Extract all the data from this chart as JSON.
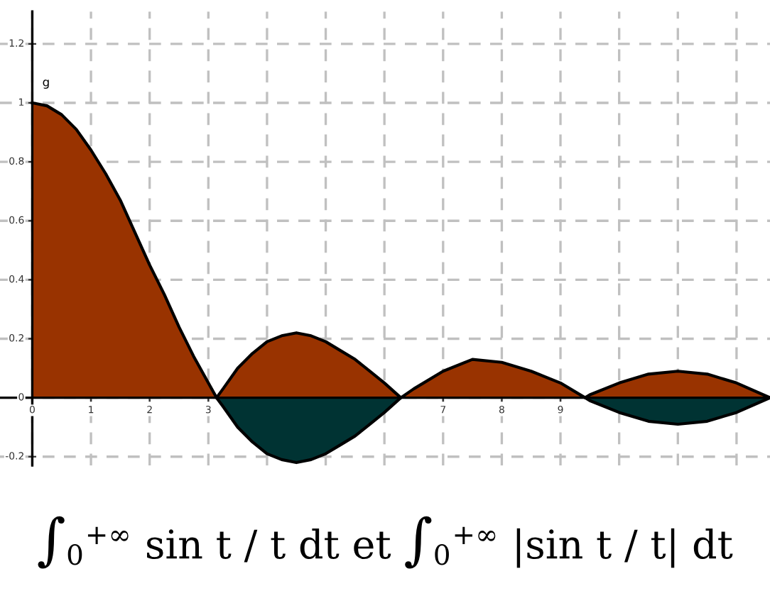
{
  "chart_data": {
    "type": "area",
    "x": [
      0,
      0.25,
      0.5,
      0.75,
      1,
      1.25,
      1.5,
      1.75,
      2,
      2.25,
      2.5,
      2.75,
      3,
      3.14,
      3.25,
      3.5,
      3.75,
      4,
      4.25,
      4.5,
      4.75,
      5,
      5.25,
      5.5,
      5.75,
      6,
      6.28,
      6.5,
      7,
      7.5,
      8,
      8.5,
      9,
      9.42,
      9.5,
      10,
      10.5,
      11,
      11.5,
      12,
      12.57
    ],
    "series": [
      {
        "color": "#993300",
        "values": [
          1,
          0.99,
          0.96,
          0.91,
          0.84,
          0.76,
          0.67,
          0.56,
          0.45,
          0.35,
          0.24,
          0.14,
          0.05,
          0,
          0.03,
          0.1,
          0.15,
          0.19,
          0.21,
          0.22,
          0.21,
          0.19,
          0.16,
          0.13,
          0.09,
          0.05,
          0,
          0.03,
          0.09,
          0.13,
          0.12,
          0.09,
          0.05,
          0,
          0.01,
          0.05,
          0.08,
          0.09,
          0.08,
          0.05,
          0
        ]
      },
      {
        "color": "#003333",
        "values": [
          null,
          null,
          null,
          null,
          null,
          null,
          null,
          null,
          null,
          null,
          null,
          null,
          null,
          0,
          -0.03,
          -0.1,
          -0.15,
          -0.19,
          -0.21,
          -0.22,
          -0.21,
          -0.19,
          -0.16,
          -0.13,
          -0.09,
          -0.05,
          0,
          null,
          null,
          null,
          null,
          null,
          null,
          0,
          -0.01,
          -0.05,
          -0.08,
          -0.09,
          -0.08,
          -0.05,
          0
        ]
      }
    ],
    "xlim": [
      -0.55,
      12.57
    ],
    "ylim": [
      -0.23,
      1.31
    ],
    "xticks": [
      0,
      1,
      2,
      3,
      {
        "value": 4,
        "label": null
      },
      {
        "value": 5,
        "label": null
      },
      {
        "value": 6,
        "label": null
      },
      7,
      8,
      9,
      {
        "value": 10,
        "label": null
      },
      {
        "value": 11,
        "label": null
      },
      {
        "value": 12,
        "label": null
      }
    ],
    "yticks": [
      -0.2,
      0,
      0.2,
      0.4,
      0.6,
      0.8,
      1,
      1.2
    ],
    "grid": true,
    "legend": false,
    "annotations": [
      "g",
      "∫$_{0}$$^{+∞}$ sin t / t dt et ∫$_{0}$$^{+∞}$ |sin t / t| dt"
    ]
  }
}
